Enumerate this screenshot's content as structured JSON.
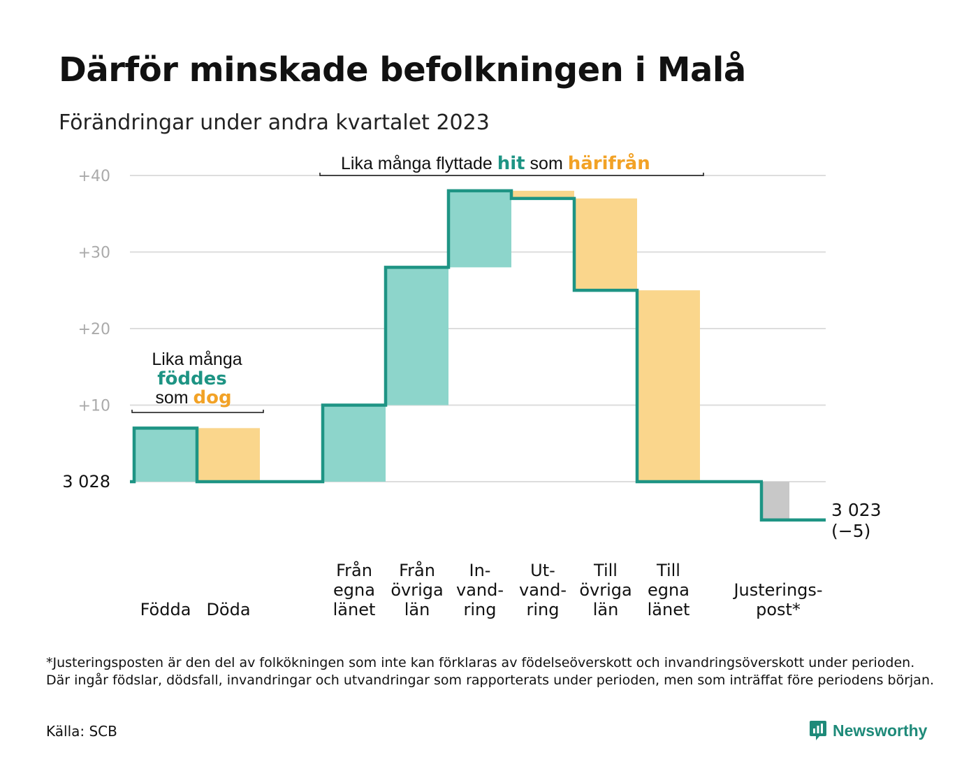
{
  "header": {
    "title": "Därför minskade befolkningen i Malå",
    "subtitle": "Förändringar under andra kvartalet 2023"
  },
  "chart_data": {
    "type": "waterfall",
    "base_value": 3028,
    "base_label": "3  028",
    "end_value": 3023,
    "end_label_lines": [
      "3 023",
      "(−5)"
    ],
    "ylim": [
      -6,
      40
    ],
    "yticks": [
      {
        "value": 40,
        "label": "+40"
      },
      {
        "value": 30,
        "label": "+30"
      },
      {
        "value": 20,
        "label": "+20"
      },
      {
        "value": 10,
        "label": "+10"
      }
    ],
    "grid": true,
    "steps": [
      {
        "key": "fodda",
        "label_lines": [
          "Födda"
        ],
        "value": 7,
        "kind": "in"
      },
      {
        "key": "doda",
        "label_lines": [
          "Döda"
        ],
        "value": -7,
        "kind": "out"
      },
      {
        "key": "spacer",
        "label_lines": [],
        "value": 0,
        "kind": "spacer"
      },
      {
        "key": "fran-egna-lanet",
        "label_lines": [
          "Från",
          "egna",
          "länet"
        ],
        "value": 10,
        "kind": "in"
      },
      {
        "key": "fran-ovriga-lan",
        "label_lines": [
          "Från",
          "övriga",
          "län"
        ],
        "value": 18,
        "kind": "in"
      },
      {
        "key": "invandring",
        "label_lines": [
          "In-",
          "vand-",
          "ring"
        ],
        "value": 10,
        "kind": "in"
      },
      {
        "key": "utvandring",
        "label_lines": [
          "Ut-",
          "vand-",
          "ring"
        ],
        "value": -1,
        "kind": "out"
      },
      {
        "key": "till-ovriga-lan",
        "label_lines": [
          "Till",
          "övriga",
          "län"
        ],
        "value": -12,
        "kind": "out"
      },
      {
        "key": "till-egna-lanet",
        "label_lines": [
          "Till",
          "egna",
          "länet"
        ],
        "value": -25,
        "kind": "out"
      },
      {
        "key": "spacer2",
        "label_lines": [],
        "value": 0,
        "kind": "spacer"
      },
      {
        "key": "justeringspost",
        "label_lines": [
          "Justerings-",
          "post*"
        ],
        "value": -5,
        "kind": "adjust"
      }
    ],
    "annotations": {
      "births": {
        "line1": "Lika många",
        "line2": "föddes",
        "line3_prefix": "som",
        "line3_word": "dog"
      },
      "migration": {
        "prefix": "Lika många flyttade",
        "word1": "hit",
        "middle": "som",
        "word2": "härifrån"
      }
    },
    "colors": {
      "in": "#8dd5cb",
      "out": "#fad68c",
      "adjust": "#c8c8c8",
      "line": "#1e9484",
      "teal_text": "#1e9484",
      "orange_text": "#f2a226",
      "grid": "#dddddd",
      "tick_text": "#aaaaaa"
    }
  },
  "footer": {
    "footnote": "*Justeringsposten är den del av folkökningen som inte kan förklaras av födelseöverskott och invandringsöverskott under perioden. Där ingår födslar, dödsfall, invandringar och utvandringar som rapporterats under perioden, men som inträffat före periodens början.",
    "source": "Källa: SCB",
    "logo_text": "Newsworthy",
    "logo_icon": "newsworthy-chart-bubble-icon"
  }
}
